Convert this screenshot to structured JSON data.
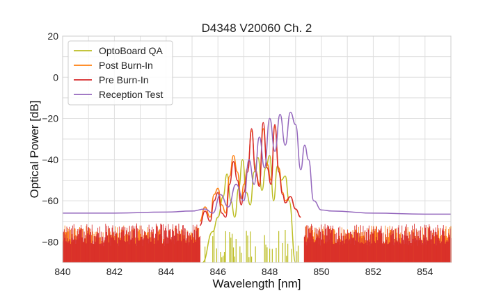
{
  "chart_data": {
    "type": "line",
    "title": "D4348 V20060 Ch. 2",
    "xlabel": "Wavelength [nm]",
    "ylabel": "Optical Power [dB]",
    "xlim": [
      840,
      855
    ],
    "ylim": [
      -90,
      20
    ],
    "x_ticks": [
      840,
      842,
      844,
      846,
      848,
      850,
      852,
      854
    ],
    "y_ticks": [
      20,
      0,
      -20,
      -40,
      -60,
      -80
    ],
    "grid": true,
    "legend_position": "top-left",
    "noise_floor_note_free": true,
    "series": [
      {
        "name": "OptoBoard QA",
        "color": "#bcbd22",
        "noise_floor": -82,
        "x": [
          845.4,
          845.8,
          846.0,
          846.2,
          846.35,
          846.5,
          846.65,
          846.8,
          846.95,
          847.1,
          847.25,
          847.4,
          847.55,
          847.7,
          847.85,
          848.0,
          848.15,
          848.3,
          848.45,
          848.6,
          848.75,
          849.0
        ],
        "y": [
          -90,
          -75,
          -68,
          -58,
          -47,
          -60,
          -68,
          -54,
          -40,
          -56,
          -62,
          -46,
          -39,
          -55,
          -44,
          -38,
          -60,
          -43,
          -50,
          -48,
          -60,
          -90
        ]
      },
      {
        "name": "Post Burn-In",
        "color": "#ff7f0e",
        "noise_floor": -76,
        "x": [
          845.3,
          845.5,
          845.7,
          845.85,
          846.0,
          846.15,
          846.3,
          846.45,
          846.6,
          846.75,
          846.9,
          847.0,
          847.15,
          847.3,
          847.45,
          847.6,
          847.75,
          847.9,
          848.05,
          848.2,
          848.35,
          848.5,
          848.6,
          848.8,
          849.0,
          849.2
        ],
        "y": [
          -70,
          -63,
          -68,
          -57,
          -54,
          -62,
          -66,
          -48,
          -38,
          -46,
          -59,
          -52,
          -44,
          -26,
          -45,
          -52,
          -25,
          -42,
          -50,
          -24,
          -44,
          -56,
          -60,
          -58,
          -64,
          -68
        ]
      },
      {
        "name": "Pre Burn-In",
        "color": "#d62728",
        "noise_floor": -75,
        "x": [
          845.3,
          845.5,
          845.7,
          845.85,
          846.0,
          846.15,
          846.3,
          846.45,
          846.6,
          846.75,
          846.9,
          847.0,
          847.15,
          847.3,
          847.45,
          847.6,
          847.75,
          847.9,
          848.05,
          848.2,
          848.35,
          848.5,
          848.6,
          848.8,
          849.0,
          849.2
        ],
        "y": [
          -72,
          -65,
          -70,
          -60,
          -56,
          -66,
          -68,
          -52,
          -41,
          -50,
          -62,
          -56,
          -46,
          -25,
          -46,
          -53,
          -22,
          -44,
          -52,
          -23,
          -46,
          -57,
          -61,
          -58,
          -64,
          -68
        ]
      },
      {
        "name": "Reception Test",
        "color": "#9467bd",
        "noise_floor": -66,
        "x": [
          840.0,
          842.0,
          844.0,
          845.0,
          845.5,
          845.8,
          846.1,
          846.4,
          846.7,
          847.0,
          847.2,
          847.4,
          847.6,
          847.8,
          848.0,
          848.2,
          848.4,
          848.6,
          848.8,
          849.0,
          849.2,
          849.35,
          849.5,
          849.7,
          850.0,
          850.4,
          852.0,
          854.0,
          855.0
        ],
        "y": [
          -66,
          -66,
          -65.5,
          -65,
          -64,
          -66,
          -57,
          -63,
          -52,
          -60,
          -40,
          -52,
          -29,
          -44,
          -20,
          -36,
          -18,
          -33,
          -17,
          -23,
          -45,
          -33,
          -40,
          -60,
          -64.5,
          -65,
          -66,
          -66.5,
          -66.5
        ]
      }
    ]
  }
}
